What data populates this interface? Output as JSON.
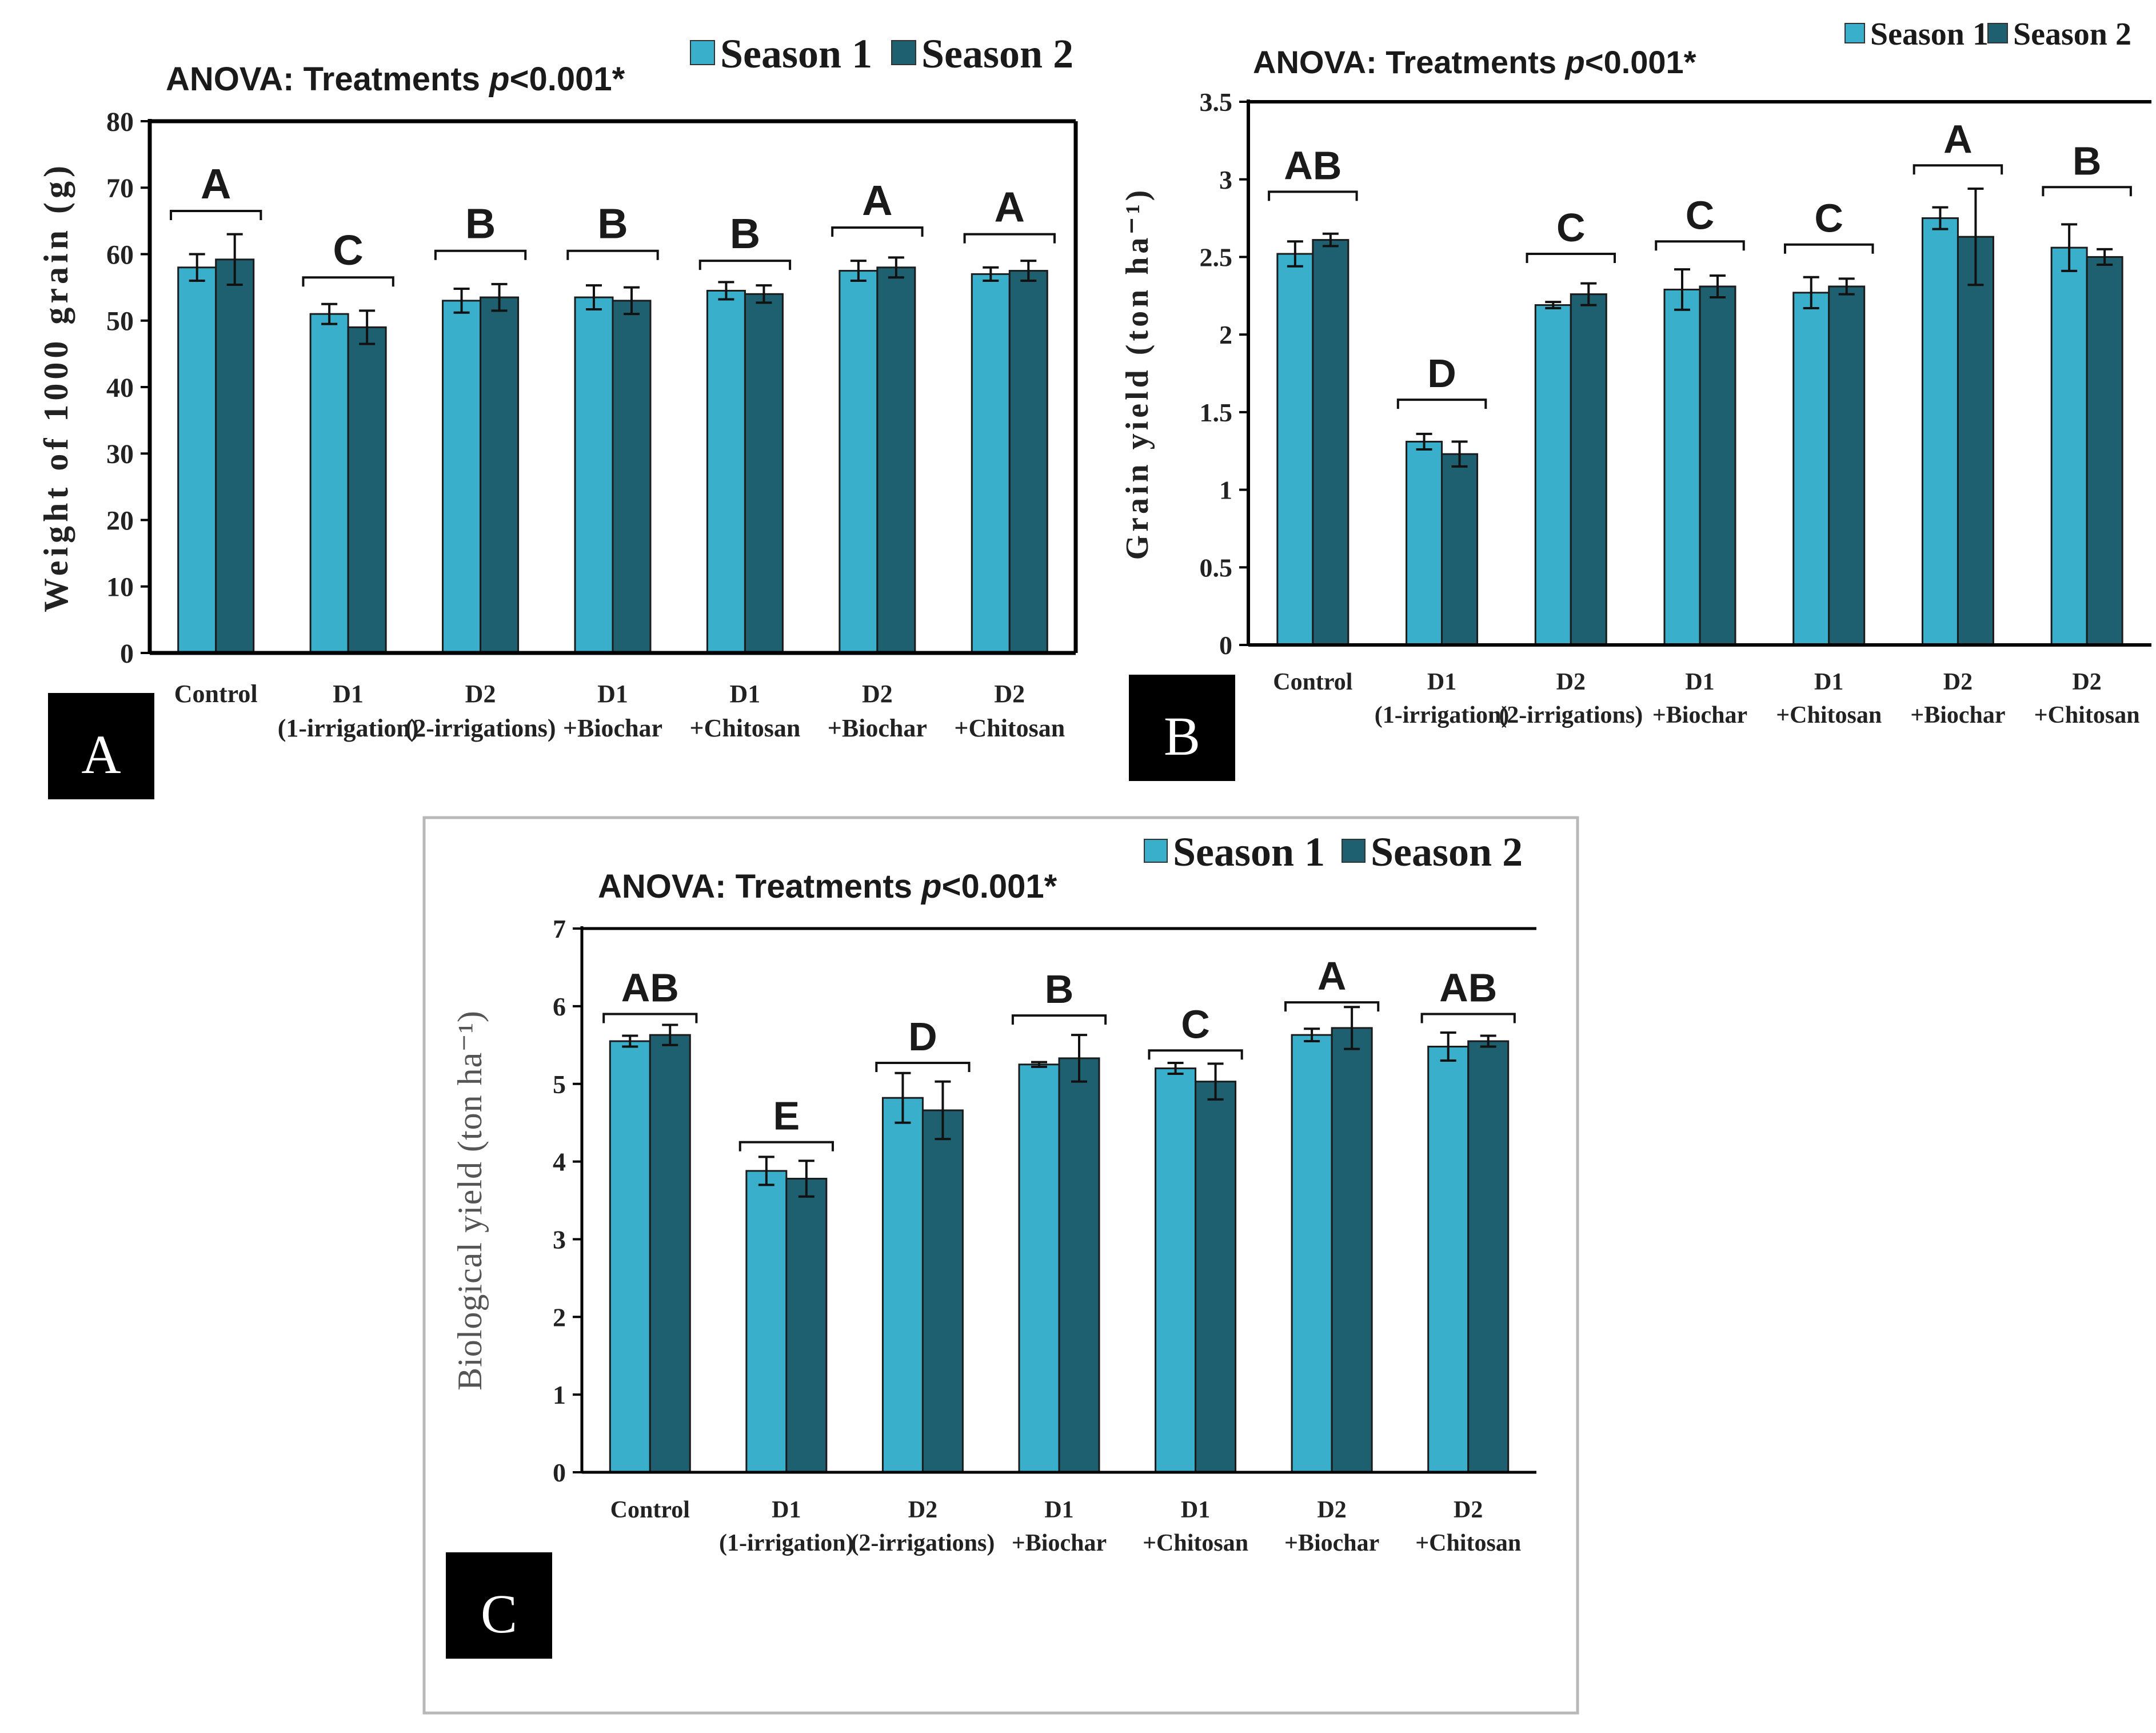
{
  "figure": {
    "panels": [
      "A",
      "B",
      "C"
    ]
  },
  "chart_data": [
    {
      "panel": "A",
      "type": "bar",
      "title": "ANOVA: Treatments p<0.001*",
      "title_parts": [
        "ANOVA: Treatments ",
        "p",
        "<0.001*"
      ],
      "ylabel": "Weight of 1000 grain (g)",
      "xlabel": "",
      "ylim": [
        0,
        80
      ],
      "yticks": [
        0,
        10,
        20,
        30,
        40,
        50,
        60,
        70,
        80
      ],
      "legend": [
        "Season 1",
        "Season 2"
      ],
      "legend_position": "top-right",
      "colors": [
        "#39afcb",
        "#1e5f70"
      ],
      "categories": [
        [
          "Control"
        ],
        [
          "D1",
          "(1-irrigation)"
        ],
        [
          "D2",
          "(2-irrigations)"
        ],
        [
          "D1",
          "+Biochar"
        ],
        [
          "D1",
          "+Chitosan"
        ],
        [
          "D2",
          "+Biochar"
        ],
        [
          "D2",
          "+Chitosan"
        ]
      ],
      "series": [
        {
          "name": "Season 1",
          "values": [
            58.0,
            51.0,
            53.0,
            53.5,
            54.5,
            57.5,
            57.0
          ],
          "errors": [
            2.0,
            1.5,
            1.8,
            1.8,
            1.3,
            1.5,
            1.0
          ]
        },
        {
          "name": "Season 2",
          "values": [
            59.2,
            49.0,
            53.5,
            53.0,
            54.0,
            58.0,
            57.5
          ],
          "errors": [
            3.8,
            2.5,
            2.0,
            2.0,
            1.3,
            1.5,
            1.5
          ]
        }
      ],
      "group_letters": [
        "A",
        "C",
        "B",
        "B",
        "B",
        "A",
        "A"
      ],
      "bracket_values": [
        66.5,
        56.5,
        60.5,
        60.5,
        59.0,
        64.0,
        63.0
      ]
    },
    {
      "panel": "B",
      "type": "bar",
      "title": "ANOVA: Treatments p<0.001*",
      "title_parts": [
        "ANOVA: Treatments ",
        "p",
        "<0.001*"
      ],
      "ylabel": "Grain yield (ton ha⁻¹)",
      "xlabel": "",
      "ylim": [
        0,
        3.5
      ],
      "yticks": [
        0,
        0.5,
        1,
        1.5,
        2,
        2.5,
        3,
        3.5
      ],
      "legend": [
        "Season 1",
        "Season 2"
      ],
      "legend_position": "top-right",
      "colors": [
        "#39afcb",
        "#1e5f70"
      ],
      "categories": [
        [
          "Control"
        ],
        [
          "D1",
          "(1-irrigation)"
        ],
        [
          "D2",
          "(2-irrigations)"
        ],
        [
          "D1",
          "+Biochar"
        ],
        [
          "D1",
          "+Chitosan"
        ],
        [
          "D2",
          "+Biochar"
        ],
        [
          "D2",
          "+Chitosan"
        ]
      ],
      "series": [
        {
          "name": "Season 1",
          "values": [
            2.52,
            1.31,
            2.19,
            2.29,
            2.27,
            2.75,
            2.56
          ],
          "errors": [
            0.08,
            0.05,
            0.02,
            0.13,
            0.1,
            0.07,
            0.15
          ]
        },
        {
          "name": "Season 2",
          "values": [
            2.61,
            1.23,
            2.26,
            2.31,
            2.31,
            2.63,
            2.5
          ],
          "errors": [
            0.04,
            0.08,
            0.07,
            0.07,
            0.05,
            0.31,
            0.05
          ]
        }
      ],
      "group_letters": [
        "AB",
        "D",
        "C",
        "C",
        "C",
        "A",
        "B"
      ],
      "bracket_values": [
        2.92,
        1.58,
        2.52,
        2.6,
        2.58,
        3.09,
        2.95
      ]
    },
    {
      "panel": "C",
      "type": "bar",
      "title": "ANOVA: Treatments p<0.001*",
      "title_parts": [
        "ANOVA: Treatments ",
        "p",
        "<0.001*"
      ],
      "ylabel": "Biological yield (ton ha⁻¹)",
      "xlabel": "",
      "ylim": [
        0,
        7
      ],
      "yticks": [
        0,
        1,
        2,
        3,
        4,
        5,
        6,
        7
      ],
      "legend": [
        "Season 1",
        "Season 2"
      ],
      "legend_position": "top-right",
      "colors": [
        "#39afcb",
        "#1e5f70"
      ],
      "categories": [
        [
          "Control"
        ],
        [
          "D1",
          "(1-irrigation)"
        ],
        [
          "D2",
          "(2-irrigations)"
        ],
        [
          "D1",
          "+Biochar"
        ],
        [
          "D1",
          "+Chitosan"
        ],
        [
          "D2",
          "+Biochar"
        ],
        [
          "D2",
          "+Chitosan"
        ]
      ],
      "series": [
        {
          "name": "Season 1",
          "values": [
            5.55,
            3.88,
            4.82,
            5.25,
            5.2,
            5.63,
            5.48
          ],
          "errors": [
            0.07,
            0.18,
            0.32,
            0.03,
            0.07,
            0.08,
            0.18
          ]
        },
        {
          "name": "Season 2",
          "values": [
            5.63,
            3.78,
            4.66,
            5.33,
            5.03,
            5.72,
            5.55
          ],
          "errors": [
            0.13,
            0.23,
            0.37,
            0.3,
            0.23,
            0.27,
            0.07
          ]
        }
      ],
      "group_letters": [
        "AB",
        "E",
        "D",
        "B",
        "C",
        "A",
        "AB"
      ],
      "bracket_values": [
        5.9,
        4.25,
        5.27,
        5.88,
        5.43,
        6.05,
        5.9
      ]
    }
  ]
}
